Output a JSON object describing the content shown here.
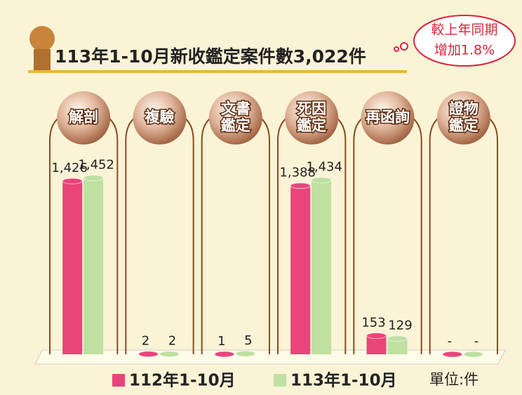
{
  "chart_data": {
    "type": "bar",
    "title": "113年1-10月新收鑑定案件數3,022件",
    "annotation": [
      "較上年同期",
      "增加1.8%"
    ],
    "unit_label": "單位:件",
    "categories": [
      [
        "解剖"
      ],
      [
        "複驗"
      ],
      [
        "文書",
        "鑑定"
      ],
      [
        "死因",
        "鑑定"
      ],
      [
        "再函詢"
      ],
      [
        "證物",
        "鑑定"
      ]
    ],
    "series": [
      {
        "name": "112年1-10月",
        "color": "#e8457a",
        "values": [
          1426,
          2,
          1,
          1388,
          153,
          0
        ],
        "value_labels": [
          "1,426",
          "2",
          "1",
          "1,388",
          "153",
          "-"
        ]
      },
      {
        "name": "113年1-10月",
        "color": "#bfe0a0",
        "values": [
          1452,
          2,
          5,
          1434,
          129,
          0
        ],
        "value_labels": [
          "1,452",
          "2",
          "5",
          "1,434",
          "129",
          "-"
        ]
      }
    ],
    "ylim": [
      0,
      1600
    ]
  }
}
